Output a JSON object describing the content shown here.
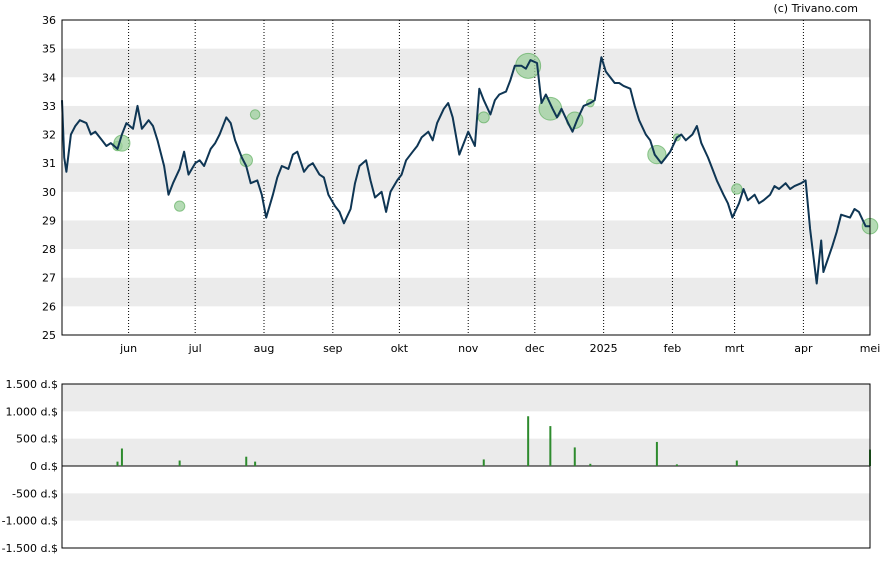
{
  "credit": "(c) Trivano.com",
  "colors": {
    "line": "#0f3654",
    "band": "#ebebeb",
    "bubble_fill": "#9ccf9c",
    "bubble_stroke": "#4fa64f",
    "volume_bar": "#2e8b2e",
    "axis": "#000000",
    "vgrid": "#000000"
  },
  "chart_data": [
    {
      "type": "line",
      "title": "",
      "xlabel": "",
      "ylabel": "",
      "ylim": [
        25,
        36
      ],
      "y_ticks": [
        "25",
        "26",
        "27",
        "28",
        "29",
        "30",
        "31",
        "32",
        "33",
        "34",
        "35",
        "36"
      ],
      "x_ticks": [
        "jun",
        "jul",
        "aug",
        "sep",
        "okt",
        "nov",
        "dec",
        "2025",
        "feb",
        "mrt",
        "apr",
        "mei"
      ],
      "x_tick_dates": [
        "2024-06-01",
        "2024-07-01",
        "2024-08-01",
        "2024-09-01",
        "2024-10-01",
        "2024-11-01",
        "2024-12-01",
        "2025-01-01",
        "2025-02-01",
        "2025-03-01",
        "2025-04-01",
        "2025-05-01"
      ],
      "x_range": [
        "2024-05-02",
        "2025-05-01"
      ],
      "grid": "alternating horizontal bands, dotted vertical lines at month starts",
      "series": [
        {
          "values": [
            [
              "2024-05-02",
              33.2
            ],
            [
              "2024-05-03",
              31.2
            ],
            [
              "2024-05-04",
              30.7
            ],
            [
              "2024-05-06",
              32.0
            ],
            [
              "2024-05-08",
              32.3
            ],
            [
              "2024-05-10",
              32.5
            ],
            [
              "2024-05-13",
              32.4
            ],
            [
              "2024-05-15",
              32.0
            ],
            [
              "2024-05-17",
              32.1
            ],
            [
              "2024-05-20",
              31.8
            ],
            [
              "2024-05-22",
              31.6
            ],
            [
              "2024-05-24",
              31.7
            ],
            [
              "2024-05-27",
              31.5
            ],
            [
              "2024-05-29",
              32.0
            ],
            [
              "2024-05-31",
              32.4
            ],
            [
              "2024-06-03",
              32.2
            ],
            [
              "2024-06-05",
              33.0
            ],
            [
              "2024-06-07",
              32.2
            ],
            [
              "2024-06-10",
              32.5
            ],
            [
              "2024-06-12",
              32.3
            ],
            [
              "2024-06-14",
              31.8
            ],
            [
              "2024-06-17",
              30.9
            ],
            [
              "2024-06-19",
              29.9
            ],
            [
              "2024-06-21",
              30.3
            ],
            [
              "2024-06-24",
              30.8
            ],
            [
              "2024-06-26",
              31.4
            ],
            [
              "2024-06-28",
              30.6
            ],
            [
              "2024-07-01",
              31.0
            ],
            [
              "2024-07-03",
              31.1
            ],
            [
              "2024-07-05",
              30.9
            ],
            [
              "2024-07-08",
              31.5
            ],
            [
              "2024-07-10",
              31.7
            ],
            [
              "2024-07-12",
              32.0
            ],
            [
              "2024-07-15",
              32.6
            ],
            [
              "2024-07-17",
              32.4
            ],
            [
              "2024-07-19",
              31.8
            ],
            [
              "2024-07-22",
              31.2
            ],
            [
              "2024-07-24",
              30.9
            ],
            [
              "2024-07-26",
              30.3
            ],
            [
              "2024-07-29",
              30.4
            ],
            [
              "2024-07-31",
              29.9
            ],
            [
              "2024-08-02",
              29.1
            ],
            [
              "2024-08-05",
              29.9
            ],
            [
              "2024-08-07",
              30.5
            ],
            [
              "2024-08-09",
              30.9
            ],
            [
              "2024-08-12",
              30.8
            ],
            [
              "2024-08-14",
              31.3
            ],
            [
              "2024-08-16",
              31.4
            ],
            [
              "2024-08-19",
              30.7
            ],
            [
              "2024-08-21",
              30.9
            ],
            [
              "2024-08-23",
              31.0
            ],
            [
              "2024-08-26",
              30.6
            ],
            [
              "2024-08-28",
              30.5
            ],
            [
              "2024-08-30",
              29.9
            ],
            [
              "2024-09-02",
              29.5
            ],
            [
              "2024-09-04",
              29.3
            ],
            [
              "2024-09-06",
              28.9
            ],
            [
              "2024-09-09",
              29.4
            ],
            [
              "2024-09-11",
              30.3
            ],
            [
              "2024-09-13",
              30.9
            ],
            [
              "2024-09-16",
              31.1
            ],
            [
              "2024-09-18",
              30.4
            ],
            [
              "2024-09-20",
              29.8
            ],
            [
              "2024-09-23",
              30.0
            ],
            [
              "2024-09-25",
              29.3
            ],
            [
              "2024-09-27",
              30.0
            ],
            [
              "2024-09-30",
              30.4
            ],
            [
              "2024-10-02",
              30.6
            ],
            [
              "2024-10-04",
              31.1
            ],
            [
              "2024-10-07",
              31.4
            ],
            [
              "2024-10-09",
              31.6
            ],
            [
              "2024-10-11",
              31.9
            ],
            [
              "2024-10-14",
              32.1
            ],
            [
              "2024-10-16",
              31.8
            ],
            [
              "2024-10-18",
              32.4
            ],
            [
              "2024-10-21",
              32.9
            ],
            [
              "2024-10-23",
              33.1
            ],
            [
              "2024-10-25",
              32.6
            ],
            [
              "2024-10-28",
              31.3
            ],
            [
              "2024-10-30",
              31.7
            ],
            [
              "2024-11-01",
              32.1
            ],
            [
              "2024-11-04",
              31.6
            ],
            [
              "2024-11-06",
              33.6
            ],
            [
              "2024-11-08",
              33.2
            ],
            [
              "2024-11-11",
              32.7
            ],
            [
              "2024-11-13",
              33.2
            ],
            [
              "2024-11-15",
              33.4
            ],
            [
              "2024-11-18",
              33.5
            ],
            [
              "2024-11-20",
              33.9
            ],
            [
              "2024-11-22",
              34.4
            ],
            [
              "2024-11-25",
              34.4
            ],
            [
              "2024-11-27",
              34.3
            ],
            [
              "2024-11-29",
              34.6
            ],
            [
              "2024-12-02",
              34.5
            ],
            [
              "2024-12-04",
              33.1
            ],
            [
              "2024-12-06",
              33.4
            ],
            [
              "2024-12-09",
              32.9
            ],
            [
              "2024-12-11",
              32.6
            ],
            [
              "2024-12-13",
              32.9
            ],
            [
              "2024-12-16",
              32.4
            ],
            [
              "2024-12-18",
              32.1
            ],
            [
              "2024-12-20",
              32.5
            ],
            [
              "2024-12-23",
              33.0
            ],
            [
              "2024-12-26",
              33.1
            ],
            [
              "2024-12-28",
              33.2
            ],
            [
              "2024-12-31",
              34.7
            ],
            [
              "2025-01-02",
              34.2
            ],
            [
              "2025-01-06",
              33.8
            ],
            [
              "2025-01-08",
              33.8
            ],
            [
              "2025-01-10",
              33.7
            ],
            [
              "2025-01-13",
              33.6
            ],
            [
              "2025-01-15",
              33.0
            ],
            [
              "2025-01-17",
              32.5
            ],
            [
              "2025-01-20",
              32.0
            ],
            [
              "2025-01-22",
              31.8
            ],
            [
              "2025-01-24",
              31.3
            ],
            [
              "2025-01-27",
              31.0
            ],
            [
              "2025-01-29",
              31.2
            ],
            [
              "2025-01-31",
              31.4
            ],
            [
              "2025-02-03",
              31.9
            ],
            [
              "2025-02-05",
              32.0
            ],
            [
              "2025-02-07",
              31.8
            ],
            [
              "2025-02-10",
              32.0
            ],
            [
              "2025-02-12",
              32.3
            ],
            [
              "2025-02-14",
              31.7
            ],
            [
              "2025-02-17",
              31.2
            ],
            [
              "2025-02-19",
              30.8
            ],
            [
              "2025-02-21",
              30.4
            ],
            [
              "2025-02-24",
              29.9
            ],
            [
              "2025-02-26",
              29.6
            ],
            [
              "2025-02-28",
              29.1
            ],
            [
              "2025-03-03",
              29.6
            ],
            [
              "2025-03-05",
              30.1
            ],
            [
              "2025-03-07",
              29.7
            ],
            [
              "2025-03-10",
              29.9
            ],
            [
              "2025-03-12",
              29.6
            ],
            [
              "2025-03-14",
              29.7
            ],
            [
              "2025-03-17",
              29.9
            ],
            [
              "2025-03-19",
              30.2
            ],
            [
              "2025-03-21",
              30.1
            ],
            [
              "2025-03-24",
              30.3
            ],
            [
              "2025-03-26",
              30.1
            ],
            [
              "2025-03-28",
              30.2
            ],
            [
              "2025-03-31",
              30.3
            ],
            [
              "2025-04-02",
              30.4
            ],
            [
              "2025-04-04",
              28.7
            ],
            [
              "2025-04-07",
              26.8
            ],
            [
              "2025-04-09",
              28.3
            ],
            [
              "2025-04-10",
              27.2
            ],
            [
              "2025-04-14",
              28.1
            ],
            [
              "2025-04-16",
              28.6
            ],
            [
              "2025-04-18",
              29.2
            ],
            [
              "2025-04-22",
              29.1
            ],
            [
              "2025-04-24",
              29.4
            ],
            [
              "2025-04-26",
              29.3
            ],
            [
              "2025-04-29",
              28.8
            ],
            [
              "2025-05-01",
              28.8
            ]
          ]
        }
      ],
      "bubbles": [
        {
          "date": "2024-05-27",
          "value": 31.6,
          "volume": 80
        },
        {
          "date": "2024-05-29",
          "value": 31.7,
          "volume": 320
        },
        {
          "date": "2024-06-24",
          "value": 29.5,
          "volume": 100
        },
        {
          "date": "2024-07-24",
          "value": 31.1,
          "volume": 170
        },
        {
          "date": "2024-07-28",
          "value": 32.7,
          "volume": 80
        },
        {
          "date": "2024-11-08",
          "value": 32.6,
          "volume": 120
        },
        {
          "date": "2024-11-28",
          "value": 34.4,
          "volume": 910
        },
        {
          "date": "2024-12-08",
          "value": 32.9,
          "volume": 730
        },
        {
          "date": "2024-12-19",
          "value": 32.5,
          "volume": 340
        },
        {
          "date": "2024-12-26",
          "value": 33.1,
          "volume": 40
        },
        {
          "date": "2025-01-25",
          "value": 31.3,
          "volume": 440
        },
        {
          "date": "2025-02-03",
          "value": 31.9,
          "volume": 30
        },
        {
          "date": "2025-03-02",
          "value": 30.1,
          "volume": 100
        },
        {
          "date": "2025-05-01",
          "value": 28.8,
          "volume": 300
        }
      ]
    },
    {
      "type": "bar",
      "title": "",
      "xlabel": "",
      "ylabel": "",
      "ylim": [
        -1500,
        1500
      ],
      "y_ticks": [
        "1.500 d.$",
        "1.000 d.$",
        "500 d.$",
        "0 d.$",
        "-500 d.$",
        "-1.000 d.$",
        "-1.500 d.$"
      ],
      "grid": "alternating horizontal bands",
      "values": [
        [
          "2024-05-27",
          80
        ],
        [
          "2024-05-29",
          320
        ],
        [
          "2024-06-24",
          100
        ],
        [
          "2024-07-24",
          170
        ],
        [
          "2024-07-28",
          80
        ],
        [
          "2024-11-08",
          120
        ],
        [
          "2024-11-28",
          910
        ],
        [
          "2024-12-08",
          730
        ],
        [
          "2024-12-19",
          340
        ],
        [
          "2024-12-26",
          40
        ],
        [
          "2025-01-25",
          440
        ],
        [
          "2025-02-03",
          30
        ],
        [
          "2025-03-02",
          100
        ],
        [
          "2025-05-01",
          300
        ]
      ]
    }
  ]
}
